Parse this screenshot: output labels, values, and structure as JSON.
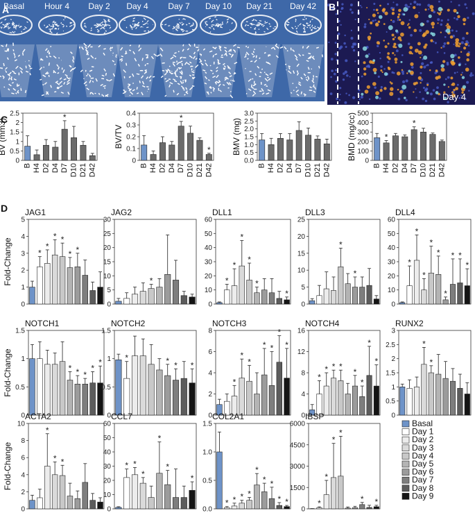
{
  "panel_labels": {
    "a": "A",
    "b": "B",
    "c": "C",
    "d": "D"
  },
  "panel_a": {
    "timepoints": [
      "Basal",
      "Hour 4",
      "Day 2",
      "Day 4",
      "Day 7",
      "Day 10",
      "Day 21",
      "Day 42"
    ],
    "bg_color": "#3e68a8"
  },
  "panel_b": {
    "label": "Day 4",
    "bg_color": "#1c1a52",
    "accent": "#f0a030"
  },
  "colors": {
    "basal": "#6e93c8",
    "gray": "#6b6b6b",
    "shades": [
      "#6e93c8",
      "#ffffff",
      "#ececec",
      "#dadada",
      "#c8c8c8",
      "#b4b4b4",
      "#9c9c9c",
      "#7e7e7e",
      "#5c5c5c",
      "#141414"
    ]
  },
  "chart_data": [
    {
      "id": "bv",
      "type": "bar",
      "ylabel": "BV (mm3)",
      "ylim": [
        0,
        2.5
      ],
      "yticks": [
        "0",
        "0.5",
        "1",
        "1.5",
        "2",
        "2.5"
      ],
      "tick_values": [
        0,
        0.5,
        1,
        1.5,
        2,
        2.5
      ],
      "categories": [
        "B",
        "H4",
        "D2",
        "D4",
        "D7",
        "D10",
        "D21",
        "D42"
      ],
      "values": [
        0.75,
        0.3,
        0.8,
        0.7,
        1.65,
        1.2,
        0.8,
        0.25
      ],
      "errors": [
        0.55,
        0.25,
        0.3,
        0.3,
        0.45,
        0.6,
        0.2,
        0.12
      ],
      "sig": [
        false,
        false,
        false,
        false,
        true,
        false,
        false,
        false
      ]
    },
    {
      "id": "bvtv",
      "type": "bar",
      "ylabel": "BV/TV",
      "ylim": [
        0,
        0.4
      ],
      "yticks": [
        "0",
        "0.1",
        "0.2",
        "0.3",
        "0.4"
      ],
      "tick_values": [
        0,
        0.1,
        0.2,
        0.3,
        0.4
      ],
      "categories": [
        "B",
        "H4",
        "D2",
        "D4",
        "D7",
        "D10",
        "D21",
        "D42"
      ],
      "values": [
        0.13,
        0.05,
        0.15,
        0.13,
        0.29,
        0.23,
        0.17,
        0.05
      ],
      "errors": [
        0.08,
        0.03,
        0.05,
        0.03,
        0.04,
        0.06,
        0.02,
        0.01
      ],
      "sig": [
        false,
        false,
        false,
        false,
        true,
        false,
        false,
        true
      ]
    },
    {
      "id": "bmv",
      "type": "bar",
      "ylabel": "BMV (mg)",
      "ylim": [
        0,
        3.0
      ],
      "yticks": [
        "0.0",
        "0.5",
        "1.0",
        "1.5",
        "2.0",
        "2.5",
        "3.0"
      ],
      "tick_values": [
        0,
        0.5,
        1,
        1.5,
        2,
        2.5,
        3
      ],
      "categories": [
        "B",
        "H4",
        "D2",
        "D4",
        "D7",
        "D10",
        "D21",
        "D42"
      ],
      "values": [
        1.3,
        1.0,
        1.4,
        1.3,
        1.9,
        1.6,
        1.35,
        1.05
      ],
      "errors": [
        0.4,
        0.4,
        0.3,
        0.4,
        0.55,
        0.45,
        0.2,
        0.3
      ],
      "sig": [
        false,
        false,
        false,
        false,
        false,
        false,
        false,
        false
      ]
    },
    {
      "id": "bmd",
      "type": "bar",
      "ylabel": "BMD (mg/cc)",
      "ylim": [
        0,
        500
      ],
      "yticks": [
        "0",
        "100",
        "200",
        "300",
        "400",
        "500"
      ],
      "tick_values": [
        0,
        100,
        200,
        300,
        400,
        500
      ],
      "categories": [
        "B",
        "H4",
        "D2",
        "D4",
        "D7",
        "D10",
        "D21",
        "D42"
      ],
      "values": [
        240,
        185,
        260,
        250,
        325,
        300,
        275,
        200
      ],
      "errors": [
        45,
        25,
        25,
        20,
        30,
        40,
        15,
        15
      ],
      "sig": [
        false,
        true,
        false,
        false,
        true,
        false,
        false,
        false
      ]
    },
    {
      "id": "jag1",
      "type": "bar",
      "title": "JAG1",
      "ylabel": "Fold-Change",
      "ylim": [
        0,
        5
      ],
      "yticks": [
        "0",
        "1",
        "2",
        "3",
        "4",
        "5"
      ],
      "tick_values": [
        0,
        1,
        2,
        3,
        4,
        5
      ],
      "values": [
        1.0,
        2.2,
        2.4,
        2.9,
        2.8,
        2.15,
        2.2,
        1.7,
        0.8,
        1.0
      ],
      "errors": [
        0.35,
        0.6,
        0.8,
        0.9,
        0.8,
        0.6,
        0.8,
        0.9,
        0.5,
        0.9
      ],
      "sig": [
        false,
        true,
        true,
        true,
        true,
        true,
        true,
        false,
        false,
        false
      ]
    },
    {
      "id": "jag2",
      "type": "bar",
      "title": "JAG2",
      "ylim": [
        0,
        30
      ],
      "yticks": [
        "0",
        "5",
        "10",
        "15",
        "20",
        "25",
        "30"
      ],
      "tick_values": [
        0,
        5,
        10,
        15,
        20,
        25,
        30
      ],
      "values": [
        1,
        2,
        3.5,
        4.5,
        5.5,
        6,
        10.5,
        8.5,
        3,
        2.5
      ],
      "errors": [
        1,
        2,
        2.5,
        3,
        1.5,
        3,
        14,
        7,
        1.5,
        1
      ],
      "sig": [
        false,
        false,
        false,
        false,
        true,
        false,
        false,
        false,
        false,
        false
      ]
    },
    {
      "id": "dll1",
      "type": "bar",
      "title": "DLL1",
      "ylim": [
        0,
        60
      ],
      "yticks": [
        "0",
        "10",
        "20",
        "30",
        "40",
        "50",
        "60"
      ],
      "tick_values": [
        0,
        10,
        20,
        30,
        40,
        50,
        60
      ],
      "values": [
        1,
        10,
        13,
        27,
        17,
        8,
        10,
        8,
        4,
        3
      ],
      "errors": [
        0.5,
        4,
        12,
        18,
        12,
        4,
        8,
        10,
        5,
        2
      ],
      "sig": [
        false,
        true,
        true,
        true,
        true,
        true,
        false,
        false,
        false,
        true
      ]
    },
    {
      "id": "dll3",
      "type": "bar",
      "title": "DLL3",
      "ylim": [
        0,
        25
      ],
      "yticks": [
        "0",
        "5",
        "10",
        "15",
        "20",
        "25"
      ],
      "tick_values": [
        0,
        5,
        10,
        15,
        20,
        25
      ],
      "values": [
        1,
        2.5,
        4.5,
        4,
        11,
        6,
        5,
        5,
        5.5,
        1.5
      ],
      "errors": [
        0.6,
        3,
        5,
        4,
        5.5,
        3,
        3,
        3,
        5,
        1
      ],
      "sig": [
        false,
        false,
        false,
        false,
        true,
        false,
        true,
        false,
        false,
        false
      ]
    },
    {
      "id": "dll4",
      "type": "bar",
      "title": "DLL4",
      "ylim": [
        0,
        60
      ],
      "yticks": [
        "0",
        "10",
        "20",
        "30",
        "40",
        "50",
        "60"
      ],
      "tick_values": [
        0,
        10,
        20,
        30,
        40,
        50,
        60
      ],
      "values": [
        1,
        13,
        31,
        10,
        22,
        21,
        3,
        14,
        15,
        13
      ],
      "errors": [
        0.5,
        14,
        18,
        8,
        19,
        13,
        2,
        18,
        17,
        12
      ],
      "sig": [
        false,
        true,
        true,
        true,
        true,
        true,
        true,
        true,
        true,
        true
      ]
    },
    {
      "id": "notch1",
      "type": "bar",
      "title": "NOTCH1",
      "ylabel": "Fold-Change",
      "ylim": [
        0,
        1.5
      ],
      "yticks": [
        "0",
        "0.5",
        "1",
        "1.5"
      ],
      "tick_values": [
        0,
        0.5,
        1,
        1.5
      ],
      "values": [
        1.0,
        1.0,
        0.9,
        0.9,
        0.95,
        0.62,
        0.55,
        0.55,
        0.57,
        0.57
      ],
      "errors": [
        0.25,
        0.3,
        0.25,
        0.2,
        0.35,
        0.15,
        0.15,
        0.1,
        0.2,
        0.3
      ],
      "sig": [
        false,
        false,
        false,
        false,
        false,
        true,
        true,
        true,
        true,
        true
      ]
    },
    {
      "id": "notch2",
      "type": "bar",
      "title": "NOTCH2",
      "ylim": [
        0,
        1.5
      ],
      "yticks": [
        "0",
        "0.5",
        "1",
        "1.5"
      ],
      "tick_values": [
        0,
        0.5,
        1,
        1.5
      ],
      "values": [
        0.98,
        0.65,
        1.05,
        1.05,
        0.9,
        0.8,
        0.7,
        0.62,
        0.65,
        0.57
      ],
      "errors": [
        0.1,
        0.3,
        0.35,
        0.3,
        0.35,
        0.2,
        0.2,
        0.2,
        0.3,
        0.25
      ],
      "sig": [
        false,
        true,
        false,
        false,
        false,
        false,
        true,
        true,
        false,
        true
      ]
    },
    {
      "id": "notch3",
      "type": "bar",
      "title": "NOTCH3",
      "ylim": [
        0,
        8
      ],
      "yticks": [
        "0",
        "2",
        "4",
        "6",
        "8"
      ],
      "tick_values": [
        0,
        2,
        4,
        6,
        8
      ],
      "values": [
        1,
        1.3,
        1.8,
        3.5,
        3.2,
        2,
        3.8,
        2.8,
        5,
        3.5
      ],
      "errors": [
        0.5,
        0.7,
        1,
        1.8,
        1.5,
        2,
        2.5,
        3.2,
        2.5,
        2.8
      ],
      "sig": [
        false,
        false,
        true,
        true,
        true,
        false,
        true,
        true,
        true,
        true
      ]
    },
    {
      "id": "notch4",
      "type": "bar",
      "title": "NOTCH4",
      "ylim": [
        0,
        16
      ],
      "yticks": [
        "0",
        "4",
        "8",
        "12",
        "16"
      ],
      "tick_values": [
        0,
        4,
        8,
        12,
        16
      ],
      "values": [
        1,
        4,
        5.5,
        7,
        6.5,
        4,
        5.5,
        3.5,
        7.5,
        5.5
      ],
      "errors": [
        1,
        2.5,
        2.5,
        1.5,
        2,
        2,
        2,
        2,
        5.5,
        4
      ],
      "sig": [
        false,
        true,
        true,
        true,
        true,
        false,
        true,
        true,
        true,
        true
      ]
    },
    {
      "id": "runx2",
      "type": "bar",
      "title": "RUNX2",
      "ylim": [
        0,
        3
      ],
      "yticks": [
        "0",
        "0.5",
        "1",
        "1.5",
        "2",
        "2.5",
        "3"
      ],
      "tick_values": [
        0,
        0.5,
        1,
        1.5,
        2,
        2.5,
        3
      ],
      "values": [
        1.0,
        0.95,
        1.0,
        1.8,
        1.5,
        1.45,
        1.3,
        1.2,
        0.95,
        0.75
      ],
      "errors": [
        0.1,
        0.3,
        0.35,
        0.6,
        0.25,
        0.7,
        0.6,
        0.45,
        0.5,
        0.4
      ],
      "sig": [
        false,
        false,
        false,
        true,
        true,
        false,
        false,
        false,
        false,
        false
      ]
    },
    {
      "id": "acta2",
      "type": "bar",
      "title": "ACTA2",
      "ylabel": "Fold-Change",
      "ylim": [
        0,
        10
      ],
      "yticks": [
        "0",
        "2",
        "4",
        "6",
        "8",
        "10"
      ],
      "tick_values": [
        0,
        2,
        4,
        6,
        8,
        10
      ],
      "values": [
        1,
        1.3,
        5,
        4,
        3.9,
        1.5,
        1.2,
        3.1,
        1,
        0.8
      ],
      "errors": [
        0.6,
        1,
        3.8,
        1.5,
        1.2,
        1.5,
        0.9,
        2.2,
        0.8,
        0.5
      ],
      "sig": [
        false,
        false,
        true,
        true,
        true,
        false,
        false,
        false,
        false,
        false
      ]
    },
    {
      "id": "ccl7",
      "type": "bar",
      "title": "CCL7",
      "ylim": [
        0,
        60
      ],
      "yticks": [
        "0",
        "10",
        "20",
        "30",
        "40",
        "50",
        "60"
      ],
      "tick_values": [
        0,
        10,
        20,
        30,
        40,
        50,
        60
      ],
      "values": [
        1,
        22,
        24,
        18,
        8,
        25,
        17,
        8,
        8,
        13
      ],
      "errors": [
        0.5,
        6,
        5,
        4,
        8,
        22,
        10,
        20,
        8,
        6
      ],
      "sig": [
        false,
        true,
        true,
        true,
        false,
        true,
        true,
        false,
        false,
        true
      ]
    },
    {
      "id": "col2a1",
      "type": "bar",
      "title": "COL2A1",
      "ylim": [
        0,
        1.5
      ],
      "yticks": [
        "0.0",
        "0.5",
        "1.0",
        "1.5"
      ],
      "tick_values": [
        0,
        0.5,
        1,
        1.5
      ],
      "values": [
        1.0,
        0.02,
        0.05,
        0.1,
        0.15,
        0.42,
        0.3,
        0.18,
        0.06,
        0.04
      ],
      "errors": [
        0.35,
        0.02,
        0.05,
        0.05,
        0.05,
        0.2,
        0.15,
        0.2,
        0.05,
        0.02
      ],
      "sig": [
        false,
        true,
        true,
        true,
        true,
        true,
        true,
        true,
        true,
        true
      ]
    },
    {
      "id": "ibsp",
      "type": "bar",
      "title": "IBSP",
      "ylim": [
        0,
        6000
      ],
      "yticks": [
        "0",
        "1500",
        "3000",
        "4500",
        "6000"
      ],
      "tick_values": [
        0,
        1500,
        3000,
        4500,
        6000
      ],
      "values": [
        10,
        80,
        1000,
        2200,
        2300,
        50,
        80,
        300,
        100,
        150
      ],
      "errors": [
        10,
        60,
        1000,
        2400,
        2800,
        80,
        100,
        150,
        150,
        100
      ],
      "sig": [
        false,
        true,
        true,
        true,
        true,
        false,
        false,
        true,
        false,
        true
      ]
    }
  ],
  "legend": [
    "Basal",
    "Day 1",
    "Day 2",
    "Day 3",
    "Day 4",
    "Day 5",
    "Day 6",
    "Day 7",
    "Day 8",
    "Day 9"
  ],
  "sig_marker": "*"
}
